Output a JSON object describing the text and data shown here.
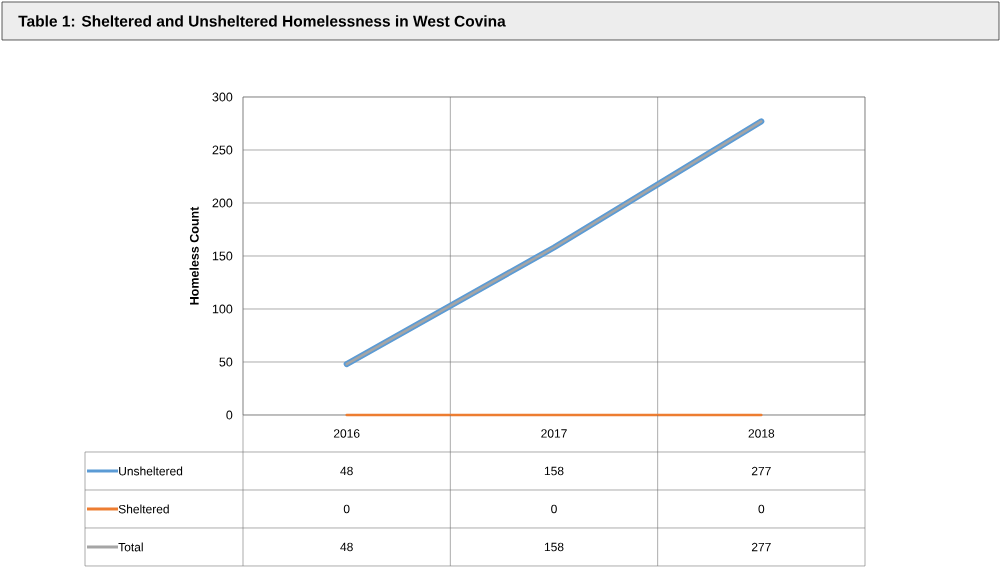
{
  "chart_data": {
    "type": "line",
    "title": "Table 1: Sheltered and Unsheltered Homelessness in West Covina",
    "ylabel": "Homeless Count",
    "categories": [
      "2016",
      "2017",
      "2018"
    ],
    "series": [
      {
        "name": "Unsheltered",
        "color": "#5b9bd5",
        "values": [
          48,
          158,
          277
        ]
      },
      {
        "name": "Sheltered",
        "color": "#ed7d31",
        "values": [
          0,
          0,
          0
        ]
      },
      {
        "name": "Total",
        "color": "#a5a5a5",
        "values": [
          48,
          158,
          277
        ]
      }
    ],
    "ylim": [
      0,
      300
    ],
    "yticks": [
      0,
      50,
      100,
      150,
      200,
      250,
      300
    ],
    "grid": true,
    "legend": "bottom",
    "data_labels": true
  }
}
